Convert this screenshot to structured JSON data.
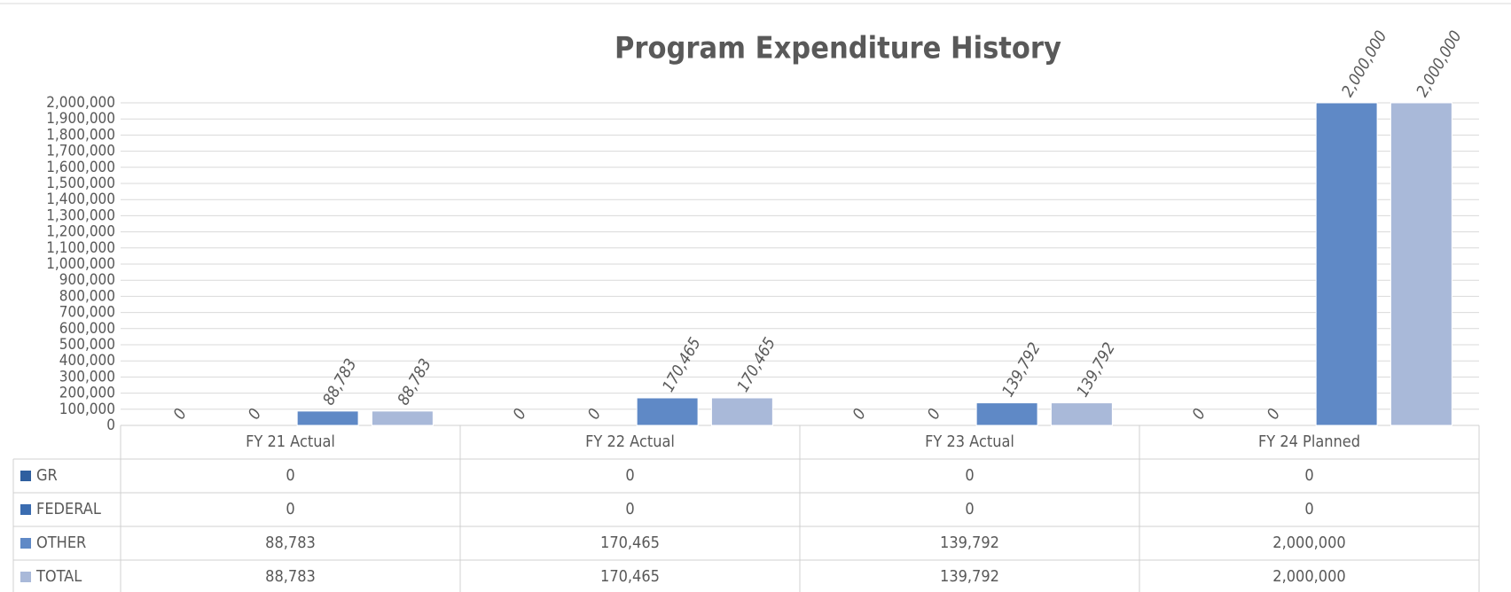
{
  "chart_data": {
    "type": "bar",
    "title": "Program Expenditure History",
    "categories": [
      "FY 21 Actual",
      "FY 22 Actual",
      "FY 23 Actual",
      "FY 24 Planned"
    ],
    "series": [
      {
        "name": "GR",
        "color": "#2f5f9f",
        "values": [
          0,
          0,
          0,
          0
        ],
        "value_labels": [
          "0",
          "0",
          "0",
          "0"
        ]
      },
      {
        "name": "FEDERAL",
        "color": "#3a6cb0",
        "values": [
          0,
          0,
          0,
          0
        ],
        "value_labels": [
          "0",
          "0",
          "0",
          "0"
        ]
      },
      {
        "name": "OTHER",
        "color": "#5f89c6",
        "values": [
          88783,
          170465,
          139792,
          2000000
        ],
        "value_labels": [
          "88,783",
          "170,465",
          "139,792",
          "2,000,000"
        ]
      },
      {
        "name": "TOTAL",
        "color": "#a9b9d9",
        "values": [
          88783,
          170465,
          139792,
          2000000
        ],
        "value_labels": [
          "88,783",
          "170,465",
          "139,792",
          "2,000,000"
        ]
      }
    ],
    "ylim": [
      0,
      2000000
    ],
    "yticks": [
      0,
      {
        "value": 100000,
        "label": "100,000"
      },
      {
        "value": 200000,
        "label": "200,000"
      },
      {
        "value": 300000,
        "label": "300,000"
      },
      {
        "value": 400000,
        "label": "400,000"
      },
      {
        "value": 500000,
        "label": "500,000"
      },
      {
        "value": 600000,
        "label": "600,000"
      },
      {
        "value": 700000,
        "label": "700,000"
      },
      {
        "value": 800000,
        "label": "800,000"
      },
      {
        "value": 900000,
        "label": "900,000"
      },
      {
        "value": 1000000,
        "label": "1,000,000"
      },
      {
        "value": 1100000,
        "label": "1,100,000"
      },
      {
        "value": 1200000,
        "label": "1,200,000"
      },
      {
        "value": 1300000,
        "label": "1,300,000"
      },
      {
        "value": 1400000,
        "label": "1,400,000"
      },
      {
        "value": 1500000,
        "label": "1,500,000"
      },
      {
        "value": 1600000,
        "label": "1,600,000"
      },
      {
        "value": 1700000,
        "label": "1,700,000"
      },
      {
        "value": 1800000,
        "label": "1,800,000"
      },
      {
        "value": 1900000,
        "label": "1,900,000"
      },
      {
        "value": 2000000,
        "label": "2,000,000"
      }
    ],
    "grid": true
  }
}
